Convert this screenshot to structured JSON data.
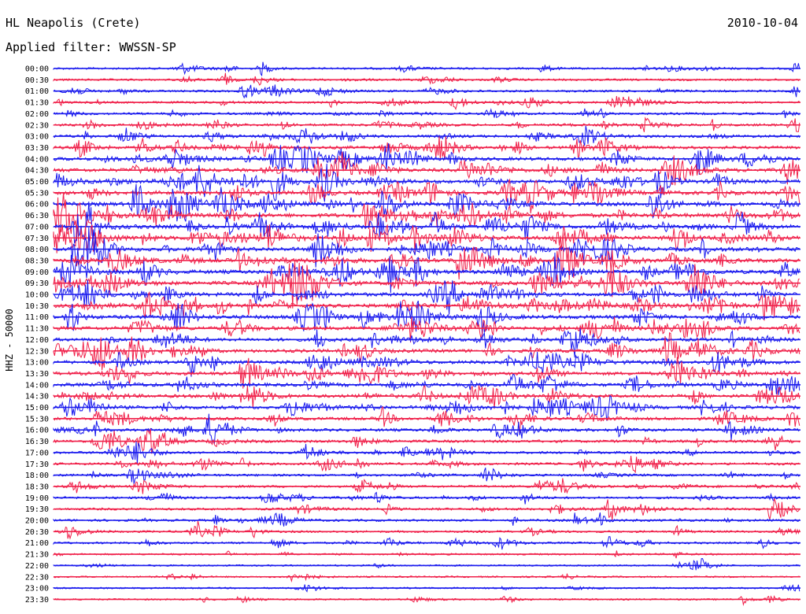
{
  "header": {
    "station": "HL Neapolis (Crete)",
    "date": "2010-10-04",
    "filter": "Applied filter: WWSSN-SP",
    "channel_scale": "HHZ - 50000"
  },
  "colors": {
    "trace_a": "#1a1aee",
    "trace_b": "#f0204a"
  },
  "chart_data": {
    "type": "line",
    "title": "HL Neapolis (Crete)",
    "subtitle": "Applied filter: WWSSN-SP",
    "date": "2010-10-04",
    "ylabel": "HHZ - 50000",
    "xlabel": "",
    "row_interval_minutes": 30,
    "rows": [
      {
        "time": "00:00",
        "activity": 0.25,
        "series": "blue"
      },
      {
        "time": "00:30",
        "activity": 0.25,
        "series": "red"
      },
      {
        "time": "01:00",
        "activity": 0.3,
        "series": "blue"
      },
      {
        "time": "01:30",
        "activity": 0.3,
        "series": "red"
      },
      {
        "time": "02:00",
        "activity": 0.35,
        "series": "blue"
      },
      {
        "time": "02:30",
        "activity": 0.4,
        "series": "red"
      },
      {
        "time": "03:00",
        "activity": 0.5,
        "series": "blue"
      },
      {
        "time": "03:30",
        "activity": 0.6,
        "series": "red"
      },
      {
        "time": "04:00",
        "activity": 0.7,
        "series": "blue"
      },
      {
        "time": "04:30",
        "activity": 0.8,
        "series": "red"
      },
      {
        "time": "05:00",
        "activity": 0.85,
        "series": "blue"
      },
      {
        "time": "05:30",
        "activity": 0.9,
        "series": "red"
      },
      {
        "time": "06:00",
        "activity": 0.9,
        "series": "blue"
      },
      {
        "time": "06:30",
        "activity": 0.95,
        "series": "red"
      },
      {
        "time": "07:00",
        "activity": 0.95,
        "series": "blue"
      },
      {
        "time": "07:30",
        "activity": 0.95,
        "series": "red"
      },
      {
        "time": "08:00",
        "activity": 0.95,
        "series": "blue"
      },
      {
        "time": "08:30",
        "activity": 0.95,
        "series": "red"
      },
      {
        "time": "09:00",
        "activity": 0.9,
        "series": "blue"
      },
      {
        "time": "09:30",
        "activity": 0.9,
        "series": "red"
      },
      {
        "time": "10:00",
        "activity": 0.85,
        "series": "blue"
      },
      {
        "time": "10:30",
        "activity": 0.85,
        "series": "red"
      },
      {
        "time": "11:00",
        "activity": 0.85,
        "series": "blue"
      },
      {
        "time": "11:30",
        "activity": 0.8,
        "series": "red"
      },
      {
        "time": "12:00",
        "activity": 0.7,
        "series": "blue"
      },
      {
        "time": "12:30",
        "activity": 0.75,
        "series": "red"
      },
      {
        "time": "13:00",
        "activity": 0.75,
        "series": "blue"
      },
      {
        "time": "13:30",
        "activity": 0.75,
        "series": "red"
      },
      {
        "time": "14:00",
        "activity": 0.7,
        "series": "blue"
      },
      {
        "time": "14:30",
        "activity": 0.7,
        "series": "red"
      },
      {
        "time": "15:00",
        "activity": 0.7,
        "series": "blue"
      },
      {
        "time": "15:30",
        "activity": 0.6,
        "series": "red"
      },
      {
        "time": "16:00",
        "activity": 0.55,
        "series": "blue"
      },
      {
        "time": "16:30",
        "activity": 0.5,
        "series": "red"
      },
      {
        "time": "17:00",
        "activity": 0.4,
        "series": "blue"
      },
      {
        "time": "17:30",
        "activity": 0.4,
        "series": "red"
      },
      {
        "time": "18:00",
        "activity": 0.35,
        "series": "blue"
      },
      {
        "time": "18:30",
        "activity": 0.35,
        "series": "red"
      },
      {
        "time": "19:00",
        "activity": 0.35,
        "series": "blue"
      },
      {
        "time": "19:30",
        "activity": 0.35,
        "series": "red"
      },
      {
        "time": "20:00",
        "activity": 0.35,
        "series": "blue"
      },
      {
        "time": "20:30",
        "activity": 0.3,
        "series": "red"
      },
      {
        "time": "21:00",
        "activity": 0.25,
        "series": "blue"
      },
      {
        "time": "21:30",
        "activity": 0.15,
        "series": "red"
      },
      {
        "time": "22:00",
        "activity": 0.1,
        "series": "blue"
      },
      {
        "time": "22:30",
        "activity": 0.1,
        "series": "red"
      },
      {
        "time": "23:00",
        "activity": 0.1,
        "series": "blue"
      },
      {
        "time": "23:30",
        "activity": 0.12,
        "series": "red"
      }
    ]
  }
}
